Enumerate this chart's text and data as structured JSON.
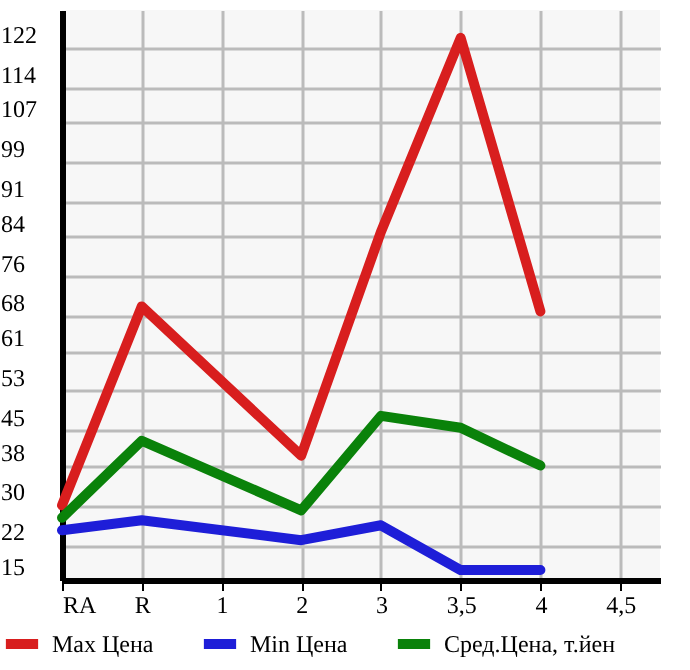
{
  "chart_data": {
    "type": "line",
    "categories": [
      "RA",
      "R",
      "1",
      "2",
      "3",
      "3,5",
      "4",
      "4,5"
    ],
    "series": [
      {
        "name": "Max Цена",
        "color": "#d81e1e",
        "values": [
          30,
          70,
          null,
          40,
          85,
          124,
          69,
          null
        ]
      },
      {
        "name": "Min Цена",
        "color": "#1e1ed8",
        "values": [
          25,
          27,
          null,
          23,
          26,
          17,
          17,
          null
        ]
      },
      {
        "name": "Сред.Цена, т.йен",
        "color": "#0a820a",
        "values": [
          27.5,
          43,
          null,
          29,
          48,
          45.6,
          38,
          null
        ]
      }
    ],
    "ylim": [
      15,
      129.6
    ],
    "yticks": [
      15,
      22,
      30,
      38,
      45,
      53,
      61,
      68,
      76,
      84,
      91,
      99,
      107,
      114,
      122
    ],
    "grid": true,
    "legend": "bottom",
    "marker": "none",
    "line_style": "solid"
  }
}
